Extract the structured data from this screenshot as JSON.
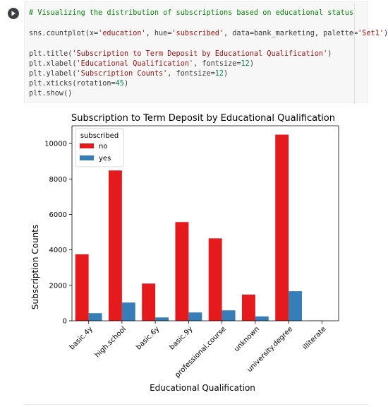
{
  "code": {
    "comment": "# Visualizing the distribution of subscriptions based on educational status",
    "line1_fn": "sns.countplot(x=",
    "line1_s1": "'education'",
    "line1_m1": ", hue=",
    "line1_s2": "'subscribed'",
    "line1_m2": ", data=bank_marketing, palette=",
    "line1_s3": "'Set1'",
    "line1_end": ")",
    "line2_fn": "plt.title(",
    "line2_s1": "'Subscription to Term Deposit by Educational Qualification'",
    "line2_end": ")",
    "line3_fn": "plt.xlabel(",
    "line3_s1": "'Educational Qualification'",
    "line3_m1": ", fontsize=",
    "line3_n1": "12",
    "line3_end": ")",
    "line4_fn": "plt.ylabel(",
    "line4_s1": "'Subscription Counts'",
    "line4_m1": ", fontsize=",
    "line4_n1": "12",
    "line4_end": ")",
    "line5_fn": "plt.xticks(rotation=",
    "line5_n1": "45",
    "line5_end": ")",
    "line6": "plt.show()"
  },
  "chart_data": {
    "type": "bar",
    "title": "Subscription to Term Deposit by Educational Qualification",
    "xlabel": "Educational Qualification",
    "ylabel": "Subscription Counts",
    "categories": [
      "basic.4y",
      "high.school",
      "basic.6y",
      "basic.9y",
      "professional.course",
      "unknown",
      "university.degree",
      "illiterate"
    ],
    "series": [
      {
        "name": "no",
        "color": "#e41a1c",
        "values": [
          3750,
          8480,
          2100,
          5570,
          4650,
          1480,
          10500,
          14
        ]
      },
      {
        "name": "yes",
        "color": "#377eb8",
        "values": [
          430,
          1030,
          190,
          470,
          590,
          250,
          1670,
          4
        ]
      }
    ],
    "ylim": [
      0,
      11000
    ],
    "yticks": [
      0,
      2000,
      4000,
      6000,
      8000,
      10000
    ],
    "legend": {
      "title": "subscribed",
      "placement": "top-left"
    },
    "grid": false,
    "xtick_rotation": 45
  }
}
